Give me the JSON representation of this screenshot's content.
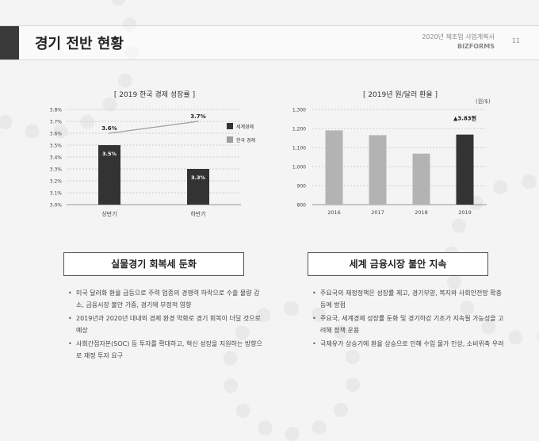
{
  "header": {
    "title": "경기 전반 현황",
    "subtitle": "2020년 제조업 사업계획서",
    "brand": "BIZFORMS",
    "page": "11"
  },
  "left_chart": {
    "caption": "[ 2019 한국 경제 성장률 ]",
    "legend": [
      "세계경제",
      "한국 경제"
    ],
    "colors": {
      "world": "#333333",
      "korea": "#9e9e9e",
      "grid": "#bfbfbf"
    }
  },
  "right_chart": {
    "caption": "[ 2019년 원/달러 환율 ]",
    "unit": "(원/$)",
    "annotation": "▲3.83원",
    "colors": {
      "past": "#b3b3b3",
      "current": "#333333"
    }
  },
  "chart_data": [
    {
      "type": "bar",
      "title": "[ 2019 한국 경제 성장률 ]",
      "categories": [
        "상반기",
        "하반기"
      ],
      "series": [
        {
          "name": "세계경제",
          "type": "bar",
          "values": [
            3.5,
            3.3
          ],
          "labels": [
            "3.5%",
            "3.3%"
          ]
        },
        {
          "name": "한국 경제",
          "type": "line",
          "values": [
            3.6,
            3.7
          ],
          "labels": [
            "3.6%",
            "3.7%"
          ]
        }
      ],
      "ylim": [
        3.0,
        3.8
      ],
      "yticks": [
        "3.0%",
        "3.1%",
        "3.2%",
        "3.3%",
        "3.4%",
        "3.5%",
        "3.6%",
        "3.7%",
        "3.8%"
      ],
      "ytick_values": [
        3.0,
        3.1,
        3.2,
        3.3,
        3.4,
        3.5,
        3.6,
        3.7,
        3.8
      ],
      "grid": true,
      "legend": "right"
    },
    {
      "type": "bar",
      "title": "[ 2019년 원/달러 환율 ]",
      "categories": [
        "2016",
        "2017",
        "2018",
        "2019"
      ],
      "values": [
        1190,
        1165,
        1068,
        1168
      ],
      "ylim": [
        800,
        1300
      ],
      "yticks": [
        "800",
        "900",
        "1,000",
        "1,100",
        "1,200",
        "1,300"
      ],
      "ytick_values": [
        800,
        900,
        1000,
        1100,
        1200,
        1300
      ],
      "grid": true,
      "annotation": "▲3.83원"
    }
  ],
  "left_section": {
    "heading": "실물경기 회복세 둔화",
    "bullets": [
      "미국 달러화 환율 급등으로 주력 업종의 경쟁력 하락으로 수출 물량 감소, 금융시장 불안 가중, 경기에 부정적 영향",
      "2019년과 2020년 대내외 경제 환경 악화로 경기 회복이 더딜 것으로 예상",
      "사회간접자본(SOC) 등 투자를 확대하고, 혁신 성장을 지원하는 방향으로 재정 투자 요구"
    ]
  },
  "right_section": {
    "heading": "세계 금융시장 불안 지속",
    "bullets": [
      "주요국의 재정정책은 성장률 제고, 경기부양, 복지와 사회안전망 확충 등에 방점",
      "주요국, 세계경제 성장률 둔화 및 경기하강 기조가 지속될 가능성을 고려해 정책 운용",
      "국제유가 상승기에 환율 상승으로 인해 수입 물가 인상, 소비위축 우려"
    ]
  }
}
